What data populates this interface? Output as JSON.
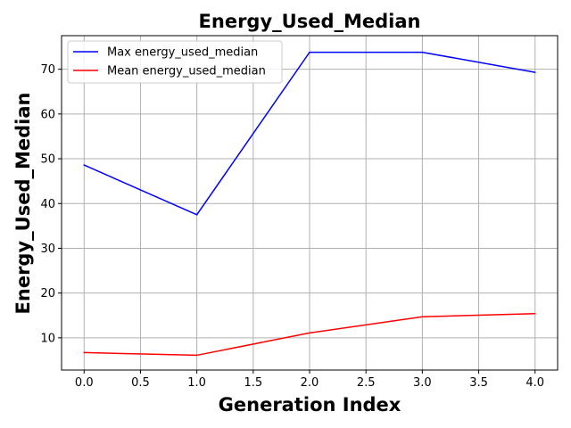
{
  "chart_data": {
    "type": "line",
    "title": "Energy_Used_Median",
    "xlabel": "Generation Index",
    "ylabel": "Energy_Used_Median",
    "x": [
      0,
      1,
      2,
      3,
      4
    ],
    "xlim": [
      -0.2,
      4.2
    ],
    "ylim": [
      2.8,
      77.5
    ],
    "xticks": [
      "0.0",
      "0.5",
      "1.0",
      "1.5",
      "2.0",
      "2.5",
      "3.0",
      "3.5",
      "4.0"
    ],
    "yticks": [
      "10",
      "20",
      "30",
      "40",
      "50",
      "60",
      "70"
    ],
    "grid": true,
    "legend_position": "upper-left",
    "series": [
      {
        "name": "Max energy_used_median",
        "color": "#0000ff",
        "values": [
          48.6,
          37.5,
          73.8,
          73.8,
          69.3
        ]
      },
      {
        "name": "Mean energy_used_median",
        "color": "#ff0000",
        "values": [
          6.7,
          6.1,
          11.1,
          14.7,
          15.4
        ]
      }
    ]
  }
}
